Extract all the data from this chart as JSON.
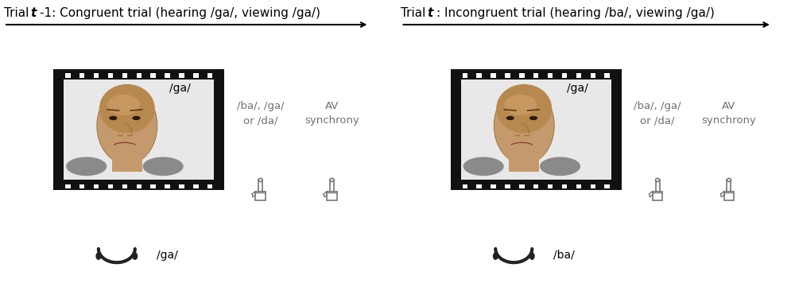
{
  "left_title_normal": "Trial ",
  "left_title_italic": "t",
  "left_title_rest": "-1: Congruent trial (hearing /ga/, viewing /ga/)",
  "right_title_normal": "Trial ",
  "right_title_italic": "t",
  "right_title_rest": ": Incongruent trial (hearing /ba/, viewing /ga/)",
  "left_video_label": "/ga/",
  "right_video_label": "/ga/",
  "left_audio_label": "/ga/",
  "right_audio_label": "/ba/",
  "left_button1_label": "/ba/, /ga/\nor /da/",
  "left_button2_label": "AV\nsynchrony",
  "right_button1_label": "/ba/, /ga/\nor /da/",
  "right_button2_label": "AV\nsynchrony",
  "bg_color": "#ffffff",
  "text_color": "#000000",
  "gray_color": "#707070",
  "film_black": "#111111",
  "title_fontsize": 11,
  "label_fontsize": 10,
  "small_fontsize": 9.5
}
